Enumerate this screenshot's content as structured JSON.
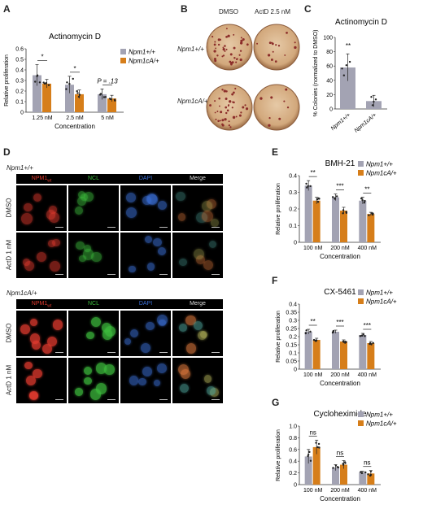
{
  "colors": {
    "wt": "#a3a3b3",
    "mut": "#d67e1a",
    "dot": "#222222",
    "mic_red": "#e33b2f",
    "mic_green": "#3cba3c",
    "mic_blue": "#3b6fd6"
  },
  "legend": {
    "wt": "Npm1+/+",
    "mut": "Npm1cA/+"
  },
  "panels": {
    "A": "A",
    "B": "B",
    "C": "C",
    "D": "D",
    "E": "E",
    "F": "F",
    "G": "G"
  },
  "colony": {
    "col_dmso": "DMSO",
    "col_actd": "ActD 2.5 nM",
    "row_wt": "Npm1+/+",
    "row_mut": "Npm1cA/+"
  },
  "micro": {
    "geno_wt": "Npm1+/+",
    "geno_mut": "Npm1cA/+",
    "ch1": "NPM1",
    "ch1_sub": "wt",
    "ch2": "NCL",
    "ch3": "DAPI",
    "ch4": "Merge",
    "row_dmso": "DMSO",
    "row_actd": "ActD 1 nM"
  },
  "chart_data": [
    {
      "id": "A",
      "type": "bar",
      "title": "Actinomycin D",
      "xlabel": "Concentration",
      "ylabel": "Relative proliferation",
      "categories": [
        "1.25 nM",
        "2.5 nM",
        "5 nM"
      ],
      "ylim": [
        0,
        0.6
      ],
      "yticks": [
        "0",
        "0.1",
        "0.2",
        "0.3",
        "0.4",
        "0.5",
        "0.6"
      ],
      "series": [
        {
          "name": "Npm1+/+",
          "values": [
            0.35,
            0.26,
            0.17
          ],
          "err": [
            0.1,
            0.08,
            0.05
          ]
        },
        {
          "name": "Npm1cA/+",
          "values": [
            0.27,
            0.17,
            0.13
          ],
          "err": [
            0.04,
            0.04,
            0.03
          ]
        }
      ],
      "annotations": [
        "*",
        "*",
        "P = .13"
      ]
    },
    {
      "id": "C",
      "type": "bar",
      "title": "Actinomycin D",
      "xlabel": "",
      "ylabel": "% Colonies (normalized to DMSO)",
      "categories": [
        "Npm1+/+",
        "Npm1cA/+"
      ],
      "ylim": [
        0,
        100
      ],
      "yticks": [
        "0",
        "20",
        "40",
        "60",
        "80",
        "100"
      ],
      "series": [
        {
          "name": "",
          "values": [
            58,
            11
          ],
          "err": [
            19,
            8
          ]
        }
      ],
      "annotations": [
        "**"
      ]
    },
    {
      "id": "E",
      "type": "bar",
      "title": "BMH-21",
      "xlabel": "Concentration",
      "ylabel": "Relative proliferation",
      "categories": [
        "100 nM",
        "200 nM",
        "400 nM"
      ],
      "ylim": [
        0,
        0.4
      ],
      "yticks": [
        "0",
        "0.1",
        "0.2",
        "0.3",
        "0.4"
      ],
      "series": [
        {
          "name": "Npm1+/+",
          "values": [
            0.34,
            0.27,
            0.25
          ],
          "err": [
            0.03,
            0.02,
            0.02
          ]
        },
        {
          "name": "Npm1cA/+",
          "values": [
            0.25,
            0.19,
            0.17
          ],
          "err": [
            0.02,
            0.02,
            0.01
          ]
        }
      ],
      "annotations": [
        "**",
        "***",
        "**"
      ]
    },
    {
      "id": "F",
      "type": "bar",
      "title": "CX-5461",
      "xlabel": "Concentration",
      "ylabel": "Relative proliferation",
      "categories": [
        "100 nM",
        "200 nM",
        "400 nM"
      ],
      "ylim": [
        0,
        0.4
      ],
      "yticks": [
        "0",
        "0.05",
        "0.1",
        "0.15",
        "0.2",
        "0.25",
        "0.3",
        "0.35",
        "0.4"
      ],
      "series": [
        {
          "name": "Npm1+/+",
          "values": [
            0.23,
            0.23,
            0.21
          ],
          "err": [
            0.015,
            0.01,
            0.01
          ]
        },
        {
          "name": "Npm1cA/+",
          "values": [
            0.18,
            0.17,
            0.16
          ],
          "err": [
            0.01,
            0.01,
            0.01
          ]
        }
      ],
      "annotations": [
        "**",
        "***",
        "***"
      ]
    },
    {
      "id": "G",
      "type": "bar",
      "title": "Cycloheximide",
      "xlabel": "Concentration",
      "ylabel": "Relative proliferation",
      "categories": [
        "100 nM",
        "200 nM",
        "400 nM"
      ],
      "ylim": [
        0,
        1.0
      ],
      "yticks": [
        "0",
        "0.2",
        "0.4",
        "0.6",
        "0.8",
        "1.0"
      ],
      "series": [
        {
          "name": "Npm1+/+",
          "values": [
            0.48,
            0.29,
            0.21
          ],
          "err": [
            0.12,
            0.05,
            0.02
          ]
        },
        {
          "name": "Npm1cA/+",
          "values": [
            0.64,
            0.34,
            0.19
          ],
          "err": [
            0.12,
            0.07,
            0.05
          ]
        }
      ],
      "annotations": [
        "ns",
        "ns",
        "ns"
      ]
    }
  ]
}
